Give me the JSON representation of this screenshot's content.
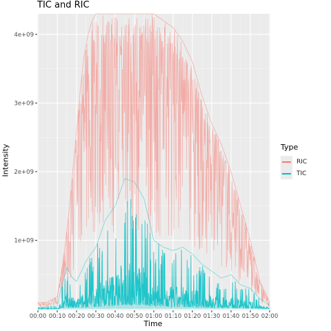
{
  "chart_data": {
    "type": "line",
    "title": "TIC and RIC",
    "xlabel": "Time",
    "ylabel": "Intensity",
    "xlim": [
      "00:00",
      "02:00"
    ],
    "ylim": [
      0,
      4300000000
    ],
    "x_ticks": [
      "00:00",
      "00:10",
      "00:20",
      "00:30",
      "00:40",
      "00:50",
      "01:00",
      "01:10",
      "01:20",
      "01:30",
      "01:40",
      "01:50",
      "02:00"
    ],
    "y_ticks": [
      {
        "value": 1000000000,
        "label": "1e+09"
      },
      {
        "value": 2000000000,
        "label": "2e+09"
      },
      {
        "value": 3000000000,
        "label": "3e+09"
      },
      {
        "value": 4000000000,
        "label": "4e+09"
      }
    ],
    "grid": true,
    "legend": {
      "title": "Type",
      "position": "right"
    },
    "series": [
      {
        "name": "RIC",
        "color": "#F8766D",
        "x": [
          "00:00",
          "00:05",
          "00:10",
          "00:12",
          "00:14",
          "00:16",
          "00:18",
          "00:20",
          "00:22",
          "00:24",
          "00:26",
          "00:28",
          "00:30",
          "00:35",
          "00:40",
          "00:45",
          "00:50",
          "00:55",
          "01:00",
          "01:05",
          "01:10",
          "01:15",
          "01:20",
          "01:25",
          "01:30",
          "01:35",
          "01:40",
          "01:45",
          "01:50",
          "01:55",
          "02:00"
        ],
        "values": [
          90000000,
          100000000,
          180000000,
          500000000,
          900000000,
          1400000000,
          2000000000,
          2600000000,
          3200000000,
          3700000000,
          4000000000,
          4200000000,
          4300000000,
          4300000000,
          4300000000,
          4300000000,
          4300000000,
          4300000000,
          4300000000,
          4200000000,
          4100000000,
          3900000000,
          3600000000,
          3100000000,
          2700000000,
          2400000000,
          2000000000,
          1500000000,
          1000000000,
          400000000,
          100000000
        ]
      },
      {
        "name": "TIC",
        "color": "#00BFC4",
        "x": [
          "00:00",
          "00:10",
          "00:12",
          "00:15",
          "00:18",
          "00:20",
          "00:25",
          "00:30",
          "00:35",
          "00:40",
          "00:45",
          "00:50",
          "00:55",
          "01:00",
          "01:05",
          "01:10",
          "01:15",
          "01:20",
          "01:25",
          "01:30",
          "01:35",
          "01:40",
          "01:45",
          "01:50",
          "01:55",
          "02:00"
        ],
        "values": [
          20000000,
          40000000,
          300000000,
          600000000,
          450000000,
          400000000,
          700000000,
          900000000,
          1300000000,
          1500000000,
          1900000000,
          1850000000,
          1600000000,
          1000000000,
          900000000,
          850000000,
          900000000,
          800000000,
          650000000,
          550000000,
          450000000,
          500000000,
          350000000,
          300000000,
          150000000,
          50000000
        ]
      }
    ]
  }
}
